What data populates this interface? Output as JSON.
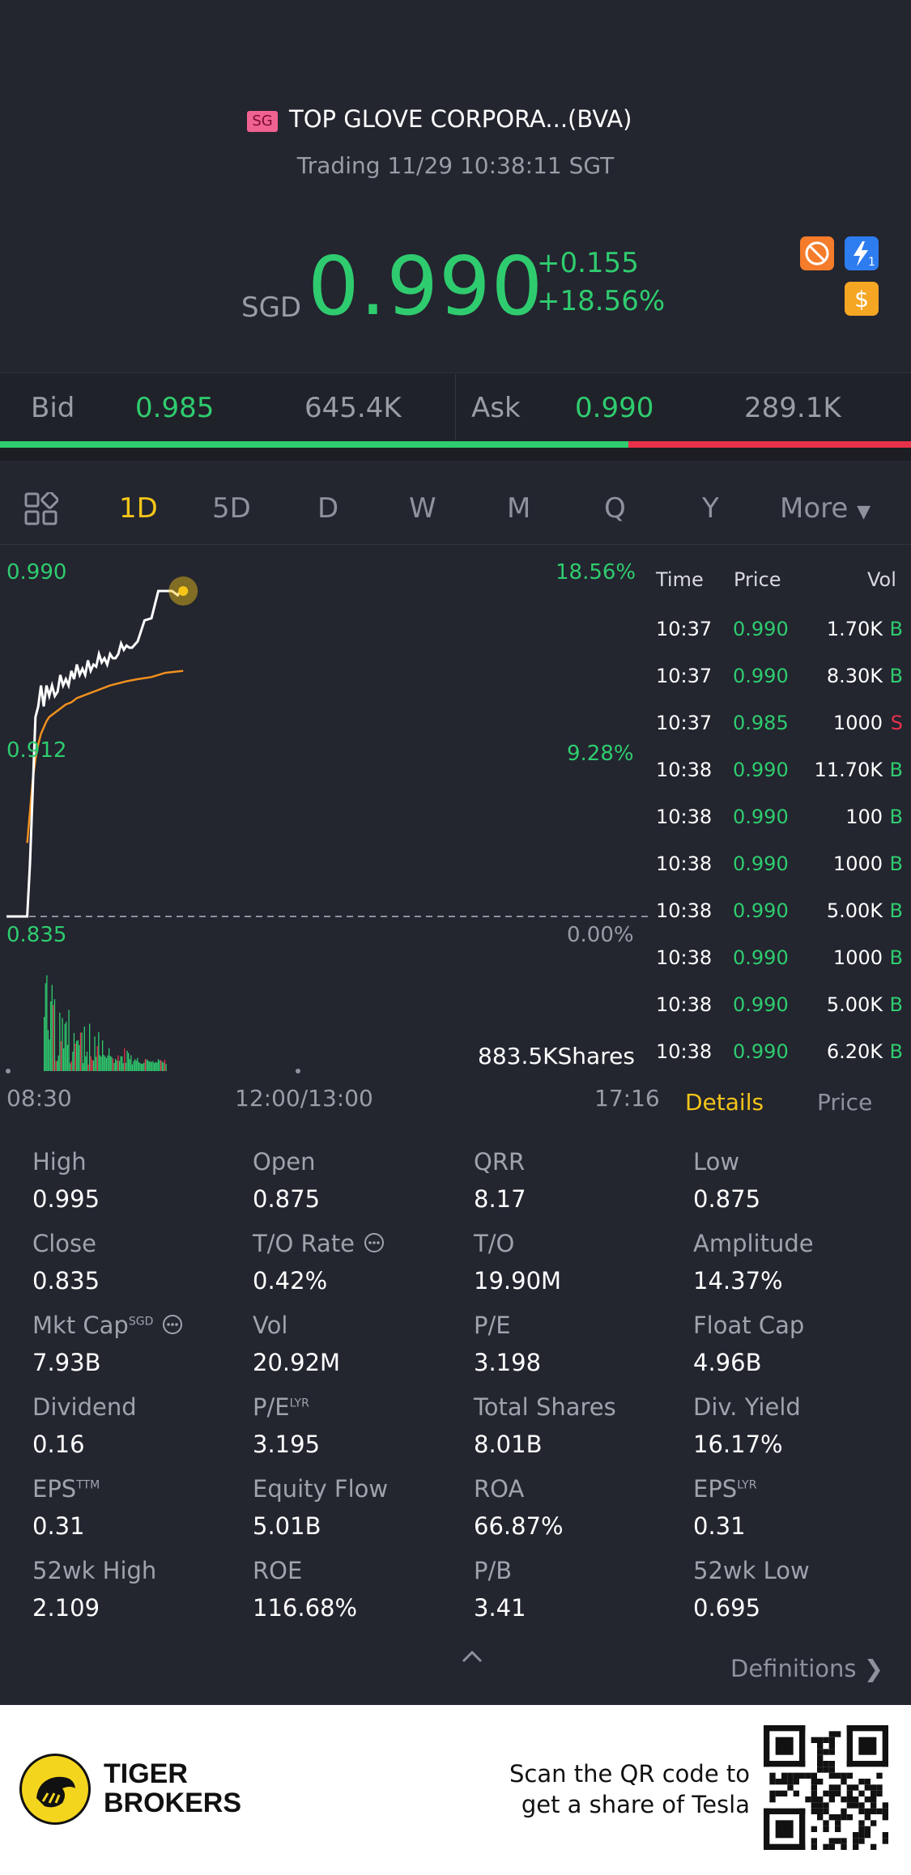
{
  "header": {
    "market_badge": "SG",
    "stock_name": "TOP GLOVE CORPORA...(BVA)",
    "trade_status": "Trading 11/29 10:38:11 SGT",
    "currency": "SGD",
    "last_price": "0.990",
    "change_abs": "+0.155",
    "change_pct": "+18.56%",
    "icons": [
      "no-short-icon",
      "lightning-icon",
      "dollar-icon"
    ]
  },
  "bid_ask": {
    "bid_label": "Bid",
    "bid_price": "0.985",
    "bid_size": "645.4K",
    "ask_label": "Ask",
    "ask_price": "0.990",
    "ask_size": "289.1K",
    "bid_ratio": 0.69
  },
  "tabs": [
    "1D",
    "5D",
    "D",
    "W",
    "M",
    "Q",
    "Y"
  ],
  "tab_selected": "1D",
  "tab_more": "More",
  "chart": {
    "price_high": "0.990",
    "price_mid": "0.912",
    "price_low": "0.835",
    "pct_high": "18.56%",
    "pct_mid": "9.28%",
    "pct_low": "0.00%",
    "volume_label": "883.5KShares",
    "time_start": "08:30",
    "time_mid": "12:00/13:00",
    "time_end": "17:16"
  },
  "chart_data": {
    "type": "line",
    "title": "",
    "xlabel": "",
    "ylabel": "",
    "ylim": [
      0.835,
      0.99
    ],
    "x_ticks": [
      "08:30",
      "12:00/13:00",
      "17:16"
    ],
    "series": [
      {
        "color": "#ffffff",
        "x": [
          "08:30",
          "08:45",
          "08:47",
          "08:49",
          "08:51",
          "08:53",
          "08:55",
          "08:57",
          "08:59",
          "09:01",
          "09:03",
          "09:05",
          "09:07",
          "09:09",
          "09:11",
          "09:13",
          "09:15",
          "09:17",
          "09:19",
          "09:21",
          "09:23",
          "09:25",
          "09:27",
          "09:29",
          "09:31",
          "09:33",
          "09:35",
          "09:37",
          "09:39",
          "09:41",
          "09:43",
          "09:45",
          "09:47",
          "09:49",
          "09:51",
          "09:53",
          "09:55",
          "09:57",
          "09:59",
          "10:01",
          "10:05",
          "10:10",
          "10:15",
          "10:20",
          "10:25",
          "10:30",
          "10:34",
          "10:36",
          "10:38"
        ],
        "values": [
          0.835,
          0.835,
          0.86,
          0.895,
          0.93,
          0.935,
          0.945,
          0.935,
          0.945,
          0.94,
          0.945,
          0.94,
          0.942,
          0.95,
          0.945,
          0.948,
          0.945,
          0.952,
          0.948,
          0.955,
          0.95,
          0.953,
          0.95,
          0.957,
          0.952,
          0.955,
          0.954,
          0.96,
          0.956,
          0.958,
          0.955,
          0.96,
          0.958,
          0.958,
          0.96,
          0.965,
          0.962,
          0.964,
          0.963,
          0.963,
          0.966,
          0.976,
          0.977,
          0.99,
          0.99,
          0.99,
          0.988,
          0.99,
          0.99
        ]
      },
      {
        "color": "#f0901e",
        "x": [
          "08:45",
          "08:47",
          "08:49",
          "08:51",
          "08:53",
          "08:55",
          "08:57",
          "08:59",
          "09:01",
          "09:05",
          "09:09",
          "09:13",
          "09:17",
          "09:21",
          "09:25",
          "09:29",
          "09:33",
          "09:37",
          "09:41",
          "09:45",
          "09:51",
          "09:57",
          "10:05",
          "10:15",
          "10:25",
          "10:38"
        ],
        "values": [
          0.87,
          0.885,
          0.9,
          0.91,
          0.917,
          0.922,
          0.925,
          0.928,
          0.93,
          0.932,
          0.934,
          0.936,
          0.937,
          0.939,
          0.94,
          0.941,
          0.942,
          0.943,
          0.944,
          0.945,
          0.946,
          0.947,
          0.948,
          0.949,
          0.951,
          0.952
        ]
      }
    ]
  },
  "trades": {
    "headers": [
      "Time",
      "Price",
      "Vol"
    ],
    "rows": [
      {
        "time": "10:37",
        "price": "0.990",
        "vol": "1.70K",
        "side": "B"
      },
      {
        "time": "10:37",
        "price": "0.990",
        "vol": "8.30K",
        "side": "B"
      },
      {
        "time": "10:37",
        "price": "0.985",
        "vol": "1000",
        "side": "S"
      },
      {
        "time": "10:38",
        "price": "0.990",
        "vol": "11.70K",
        "side": "B"
      },
      {
        "time": "10:38",
        "price": "0.990",
        "vol": "100",
        "side": "B"
      },
      {
        "time": "10:38",
        "price": "0.990",
        "vol": "1000",
        "side": "B"
      },
      {
        "time": "10:38",
        "price": "0.990",
        "vol": "5.00K",
        "side": "B"
      },
      {
        "time": "10:38",
        "price": "0.990",
        "vol": "1000",
        "side": "B"
      },
      {
        "time": "10:38",
        "price": "0.990",
        "vol": "5.00K",
        "side": "B"
      },
      {
        "time": "10:38",
        "price": "0.990",
        "vol": "6.20K",
        "side": "B"
      }
    ],
    "details_tab": "Details",
    "price_tab": "Price"
  },
  "stats": [
    {
      "label": "High",
      "value": "0.995",
      "sup": ""
    },
    {
      "label": "Open",
      "value": "0.875",
      "sup": ""
    },
    {
      "label": "QRR",
      "value": "8.17",
      "sup": ""
    },
    {
      "label": "Low",
      "value": "0.875",
      "sup": ""
    },
    {
      "label": "Close",
      "value": "0.835",
      "sup": ""
    },
    {
      "label": "T/O Rate",
      "value": "0.42%",
      "sup": ""
    },
    {
      "label": "T/O",
      "value": "19.90M",
      "sup": ""
    },
    {
      "label": "Amplitude",
      "value": "14.37%",
      "sup": ""
    },
    {
      "label": "Mkt Cap",
      "value": "7.93B",
      "sup": "SGD"
    },
    {
      "label": "Vol",
      "value": "20.92M",
      "sup": ""
    },
    {
      "label": "P/E",
      "value": "3.198",
      "sup": ""
    },
    {
      "label": "Float Cap",
      "value": "4.96B",
      "sup": ""
    },
    {
      "label": "Dividend",
      "value": "0.16",
      "sup": ""
    },
    {
      "label": "P/E",
      "value": "3.195",
      "sup": "LYR"
    },
    {
      "label": "Total Shares",
      "value": "8.01B",
      "sup": ""
    },
    {
      "label": "Div. Yield",
      "value": "16.17%",
      "sup": ""
    },
    {
      "label": "EPS",
      "value": "0.31",
      "sup": "TTM"
    },
    {
      "label": "Equity Flow",
      "value": "5.01B",
      "sup": ""
    },
    {
      "label": "ROA",
      "value": "66.87%",
      "sup": ""
    },
    {
      "label": "EPS",
      "value": "0.31",
      "sup": "LYR"
    },
    {
      "label": "52wk High",
      "value": "2.109",
      "sup": ""
    },
    {
      "label": "ROE",
      "value": "116.68%",
      "sup": ""
    },
    {
      "label": "P/B",
      "value": "3.41",
      "sup": ""
    },
    {
      "label": "52wk Low",
      "value": "0.695",
      "sup": ""
    }
  ],
  "definitions_link": "Definitions",
  "footer": {
    "brand_line1": "TIGER",
    "brand_line2": "BROKERS",
    "promo_line1": "Scan the QR code to",
    "promo_line2": "get a share of Tesla"
  },
  "colors": {
    "background": "#23252f",
    "up": "#2fcc6f",
    "down": "#e8304a",
    "accent": "#f5c518"
  }
}
